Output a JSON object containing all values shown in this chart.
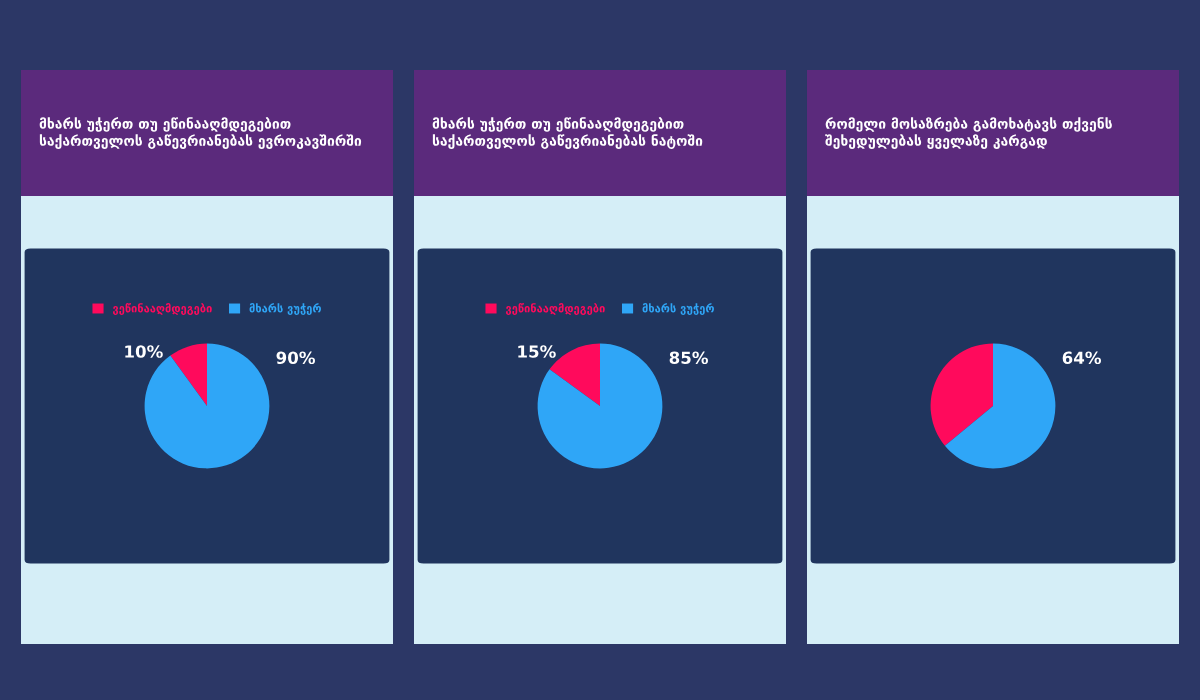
{
  "chart_data": [
    {
      "type": "pie",
      "title": "მხარს უჭერთ თუ ეწინააღმდეგებით\nსაქართველოს გაწევრიანებას ევროკავშირში",
      "categories": [
        "ვეწინააღმდეგები",
        "მხარს ვუჭერ"
      ],
      "values": [
        10,
        90
      ],
      "colors": [
        "#ff0a5c",
        "#2fa6f7"
      ],
      "value_labels": [
        "10%",
        "90%"
      ],
      "legend": "top"
    },
    {
      "type": "pie",
      "title": "მხარს უჭერთ თუ ეწინააღმდეგებით\nსაქართველოს გაწევრიანებას ნატოში",
      "categories": [
        "ვეწინააღმდეგები",
        "მხარს ვუჭერ"
      ],
      "values": [
        15,
        85
      ],
      "colors": [
        "#ff0a5c",
        "#2fa6f7"
      ],
      "value_labels": [
        "15%",
        "85%"
      ],
      "legend": "top"
    },
    {
      "type": "pie",
      "title": "რომელი მოსაზრება გამოხატავს თქვენს\nშეხედულებას ყველაზე კარგად",
      "categories": [
        null,
        null
      ],
      "values": [
        36,
        64
      ],
      "colors": [
        "#ff0a5c",
        "#2fa6f7"
      ],
      "value_labels": [
        null,
        "64%"
      ]
    }
  ]
}
